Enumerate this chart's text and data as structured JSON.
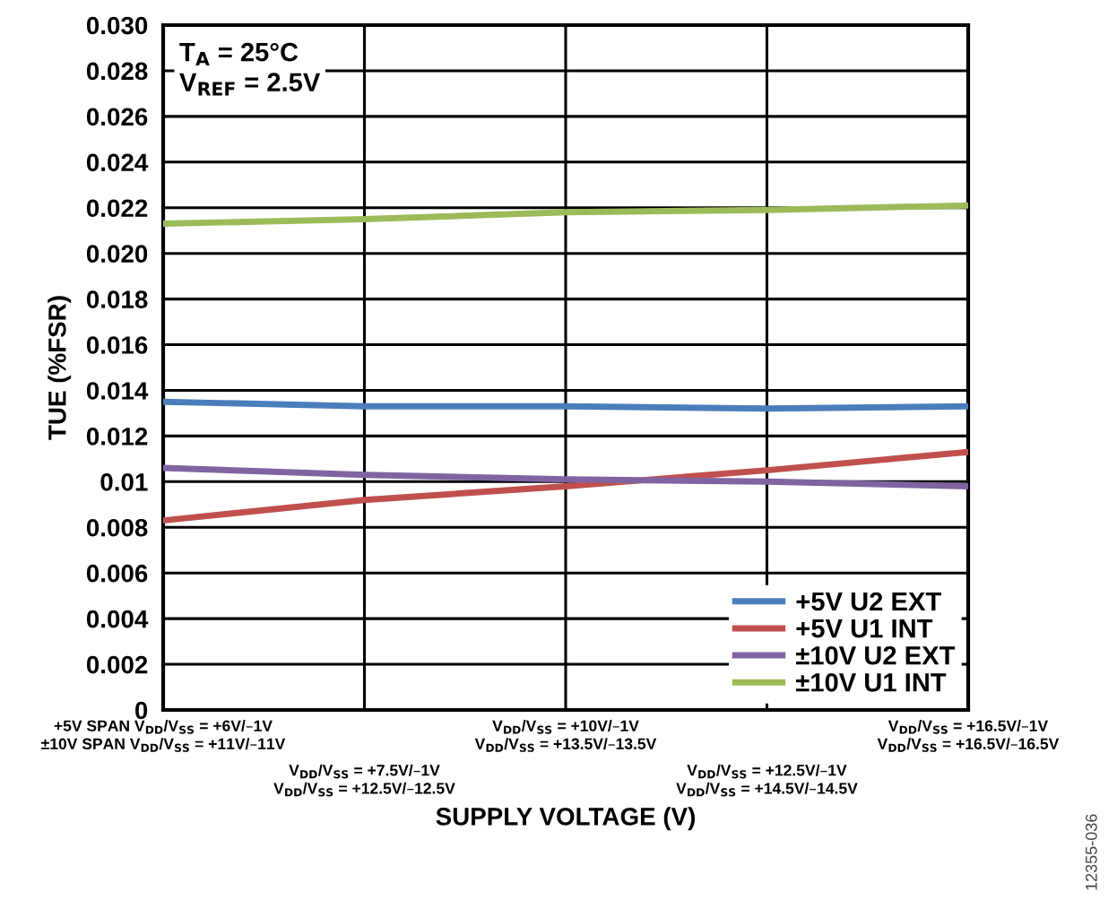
{
  "chart_data": {
    "type": "line",
    "xlabel": "SUPPLY VOLTAGE (V)",
    "ylabel": "TUE (%FSR)",
    "categories": [
      "+5V SPAN V$_{DD}$/V$_{SS}$ = +6V/–1V\n±10V SPAN V$_{DD}$/V$_{SS}$ = +11V/–11V",
      "V$_{DD}$/V$_{SS}$ = +7.5V/–1V\nV$_{DD}$/V$_{SS}$ = +12.5V/–12.5V",
      "V$_{DD}$/V$_{SS}$ = +10V/–1V\nV$_{DD}$/V$_{SS}$ = +13.5V/–13.5V",
      "V$_{DD}$/V$_{SS}$ = +12.5V/–1V\nV$_{DD}$/V$_{SS}$ = +14.5V/–14.5V",
      "V$_{DD}$/V$_{SS}$ = +16.5V/–1V\nV$_{DD}$/V$_{SS}$ = +16.5V/–16.5V"
    ],
    "series": [
      {
        "name": "+5V U2 EXT",
        "color": "#4a7ebb",
        "values": [
          0.0135,
          0.0133,
          0.0133,
          0.0132,
          0.0133
        ]
      },
      {
        "name": "+5V U1 INT",
        "color": "#c0504d",
        "values": [
          0.0083,
          0.0092,
          0.0098,
          0.0105,
          0.0113
        ]
      },
      {
        "name": "±10V U2 EXT",
        "color": "#8064a2",
        "values": [
          0.0106,
          0.0103,
          0.0101,
          0.01,
          0.0098
        ]
      },
      {
        "name": "±10V U1 INT",
        "color": "#9bbb59",
        "values": [
          0.0213,
          0.0215,
          0.0218,
          0.0219,
          0.0221
        ]
      }
    ],
    "ylim": [
      0,
      0.03
    ],
    "yticks": [
      {
        "value": 0,
        "label": "0"
      },
      0.002,
      0.004,
      0.006,
      0.008,
      {
        "value": 0.01,
        "label": "0.01"
      },
      0.012,
      0.014,
      0.016,
      0.018,
      {
        "value": 0.02,
        "label": "0.020"
      },
      0.022,
      0.024,
      0.026,
      0.028,
      {
        "value": 0.03,
        "label": "0.030"
      }
    ],
    "grid": true,
    "legend": "bottom right",
    "marker": "none",
    "line_style": "solid",
    "annotations": [
      "T$_{A}$ = 25°C\nV$_{REF}$ = 2.5V",
      "12355-036"
    ]
  }
}
